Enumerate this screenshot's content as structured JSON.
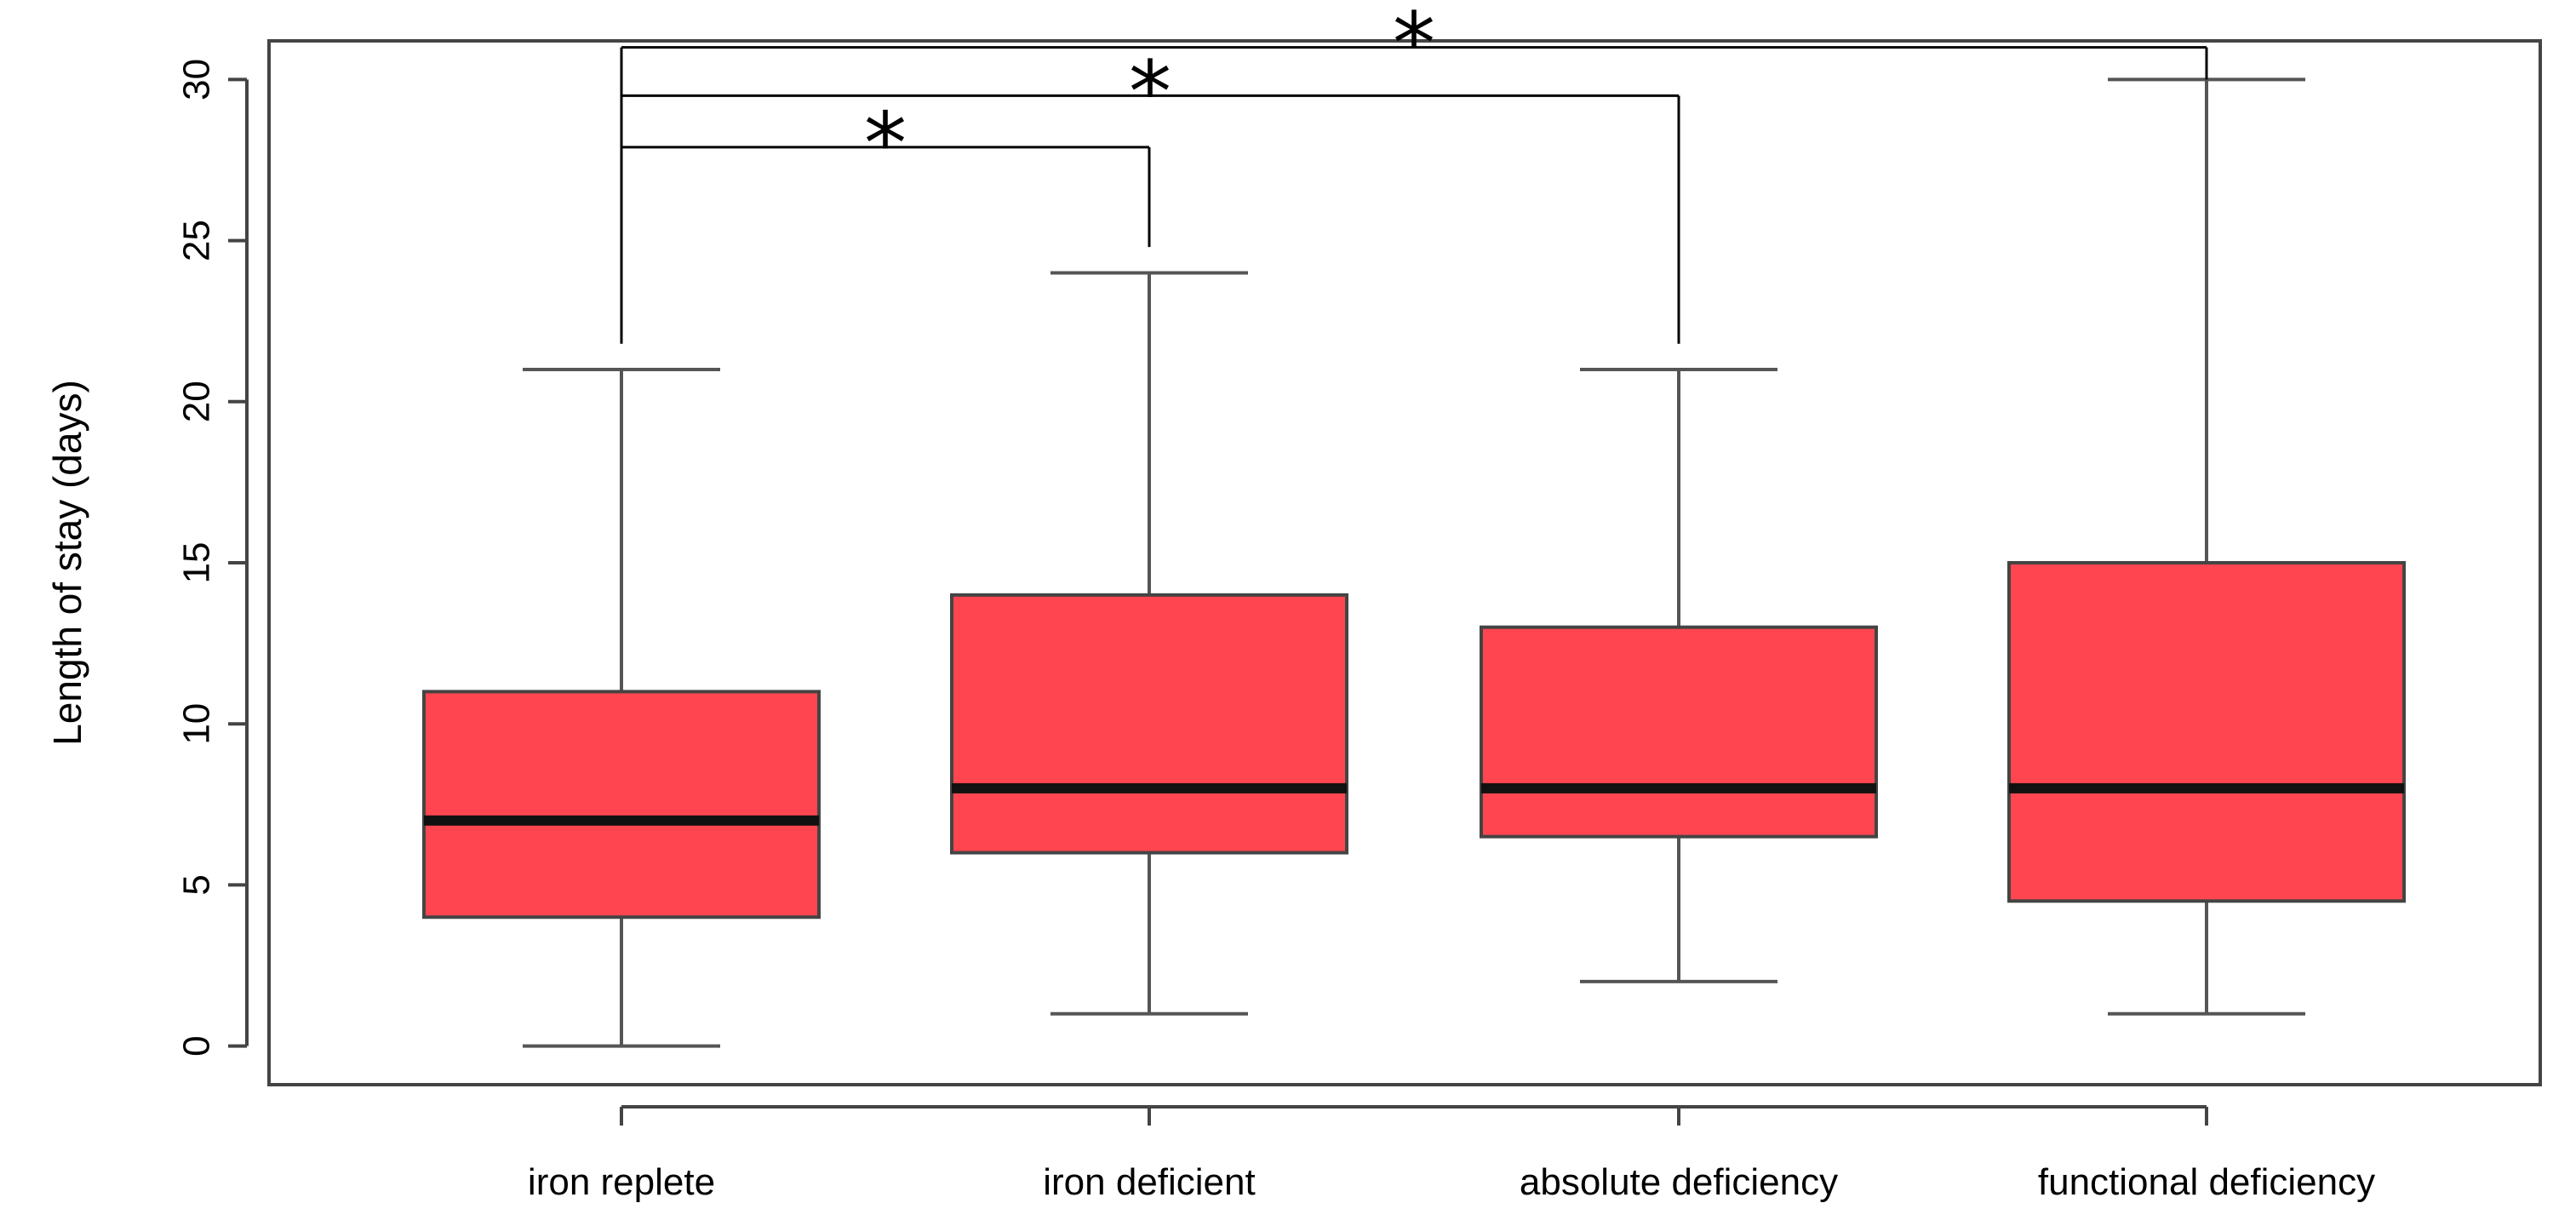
{
  "chart_data": {
    "type": "boxplot",
    "title": "",
    "xlabel": "",
    "ylabel": "Length of stay (days)",
    "ylim": [
      -1.2,
      31.2
    ],
    "yticks": [
      0,
      5,
      10,
      15,
      20,
      25,
      30
    ],
    "ytick_labels": [
      "0",
      "5",
      "10",
      "15",
      "20",
      "25",
      "30"
    ],
    "grid": false,
    "fill_color": "#ff4650",
    "categories": [
      "iron replete",
      "iron deficient",
      "absolute deficiency",
      "functional deficiency"
    ],
    "boxes": [
      {
        "name": "iron replete",
        "whisker_low": 0,
        "q1": 4,
        "median": 7,
        "q3": 11,
        "whisker_high": 21
      },
      {
        "name": "iron deficient",
        "whisker_low": 1,
        "q1": 6,
        "median": 8,
        "q3": 14,
        "whisker_high": 24
      },
      {
        "name": "absolute deficiency",
        "whisker_low": 2,
        "q1": 6.5,
        "median": 8,
        "q3": 13,
        "whisker_high": 21
      },
      {
        "name": "functional deficiency",
        "whisker_low": 1,
        "q1": 4.5,
        "median": 8,
        "q3": 15,
        "whisker_high": 30
      }
    ],
    "significance": [
      {
        "from": 0,
        "to": 1,
        "y": 27.9,
        "end_y": 24.8,
        "label": "*"
      },
      {
        "from": 0,
        "to": 2,
        "y": 29.5,
        "end_y": 21.8,
        "label": "*"
      },
      {
        "from": 0,
        "to": 3,
        "y": 31.0,
        "end_y": 30.0,
        "label": "*"
      }
    ]
  }
}
